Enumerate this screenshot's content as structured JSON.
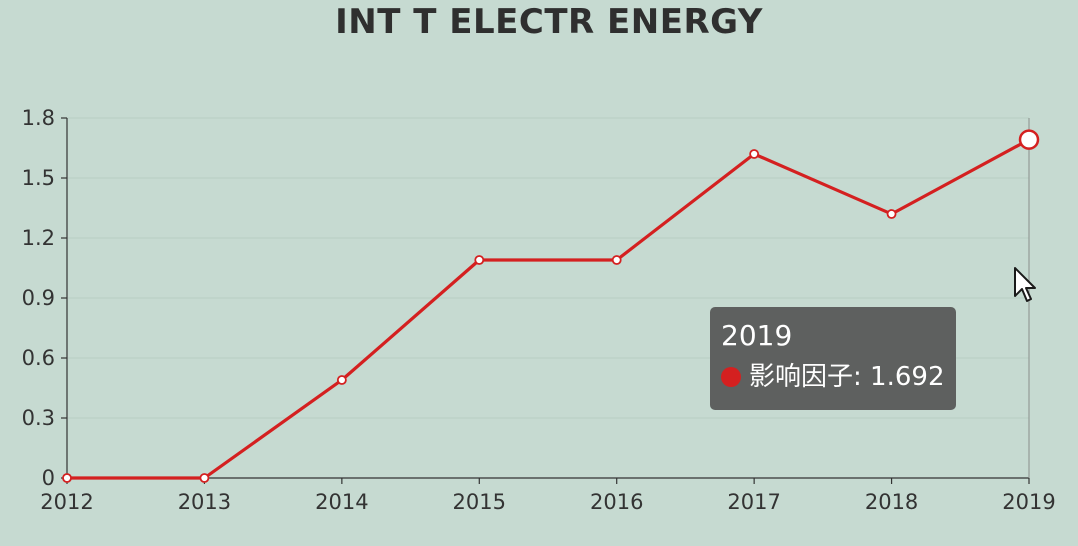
{
  "chart_data": {
    "type": "line",
    "title": "INT T ELECTR ENERGY",
    "categories": [
      "2012",
      "2013",
      "2014",
      "2015",
      "2016",
      "2017",
      "2018",
      "2019"
    ],
    "series": [
      {
        "name": "影响因子",
        "values": [
          0,
          0,
          0.49,
          1.09,
          1.09,
          1.62,
          1.32,
          1.692
        ],
        "color": "#d42020"
      }
    ],
    "ylim": [
      0,
      1.8
    ],
    "yticks": [
      "0",
      "0.3",
      "0.6",
      "0.9",
      "1.2",
      "1.5",
      "1.8"
    ],
    "xlabel": "",
    "ylabel": "",
    "grid": true,
    "highlight_index": 7
  },
  "tooltip": {
    "title": "2019",
    "series_label": "影响因子",
    "separator": ": ",
    "value": "1.692",
    "dot_color": "#d42020"
  },
  "colors": {
    "background": "#c6dad1",
    "line": "#d42020",
    "axis": "#333333",
    "grid": "#b8cec4",
    "tooltip_bg": "#5e605f"
  }
}
